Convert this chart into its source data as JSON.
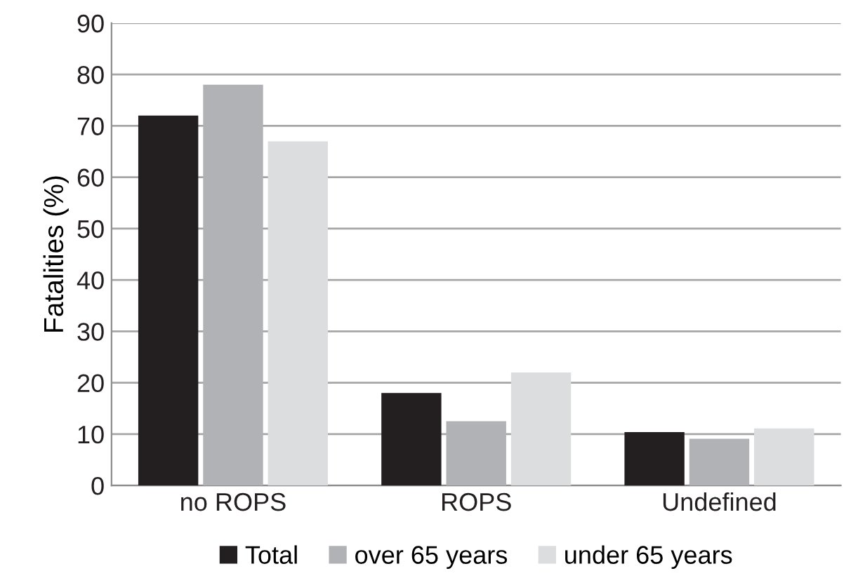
{
  "chart_data": {
    "type": "bar",
    "ylabel": "Fatalities (%)",
    "categories": [
      "no ROPS",
      "ROPS",
      "Undefined"
    ],
    "series": [
      {
        "name": "Total",
        "color": "#231f20",
        "values": [
          72,
          18,
          10.4
        ]
      },
      {
        "name": "over 65 years",
        "color": "#b1b2b5",
        "values": [
          78,
          12.5,
          9.1
        ]
      },
      {
        "name": "under 65 years",
        "color": "#dcdddf",
        "values": [
          67,
          22,
          11.1
        ]
      }
    ],
    "ylim": [
      0,
      90
    ],
    "yticks": [
      0,
      10,
      20,
      30,
      40,
      50,
      60,
      70,
      80,
      90
    ],
    "grid": "y",
    "legend": "bottom"
  }
}
